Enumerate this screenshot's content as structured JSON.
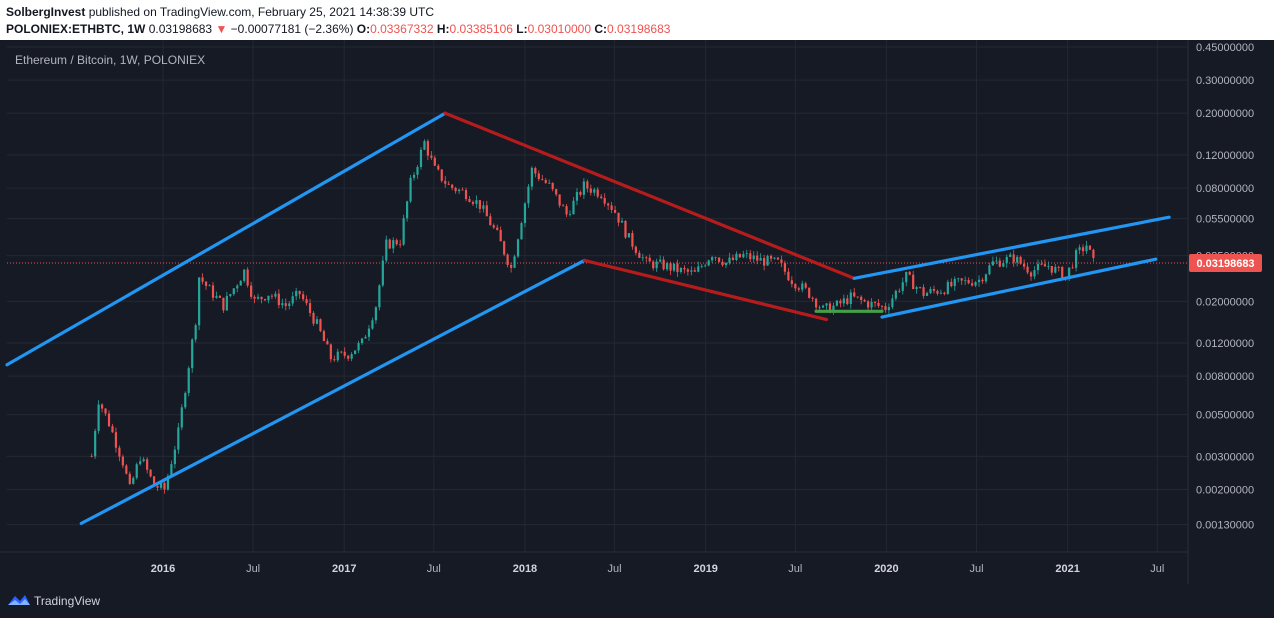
{
  "header": {
    "author": "SolbergInvest",
    "published": "published on TradingView.com, February 25, 2021 14:38:39 UTC",
    "symbol_interval": "POLONIEX:ETHBTC, 1W",
    "last": "0.03198683",
    "change": "−0.00077181 (−2.36%)",
    "open_label": "O:",
    "open": "0.03367332",
    "high_label": "H:",
    "high": "0.03385106",
    "low_label": "L:",
    "low": "0.03010000",
    "close_label": "C:",
    "close": "0.03198683"
  },
  "legend": {
    "title": "Ethereum / Bitcoin, 1W, POLONIEX"
  },
  "colors": {
    "background": "#161a25",
    "grid": "#242833",
    "up": "#26a69a",
    "down": "#ef5350",
    "channel_blue": "#2196f3",
    "wedge_red": "#b71c1c",
    "base_green": "#43a047",
    "axis_text": "#b2b5be"
  },
  "footer": {
    "brand": "TradingView"
  },
  "chart_data": {
    "type": "candlestick",
    "title": "Ethereum / Bitcoin, 1W, POLONIEX",
    "scale": "log",
    "ylim": [
      0.00093,
      0.49
    ],
    "xlim": [
      "2015-02-20",
      "2021-09-01"
    ],
    "grid": true,
    "y_ticks": [
      "0.45000000",
      "0.30000000",
      "0.20000000",
      "0.12000000",
      "0.08000000",
      "0.05500000",
      "0.03500000",
      "0.02000000",
      "0.01200000",
      "0.00800000",
      "0.00500000",
      "0.00300000",
      "0.00200000",
      "0.00130000"
    ],
    "x_ticks": [
      {
        "date": "2016-01-01",
        "label": "2016"
      },
      {
        "date": "2016-07-01",
        "label": "Jul"
      },
      {
        "date": "2017-01-01",
        "label": "2017"
      },
      {
        "date": "2017-07-01",
        "label": "Jul"
      },
      {
        "date": "2018-01-01",
        "label": "2018"
      },
      {
        "date": "2018-07-01",
        "label": "Jul"
      },
      {
        "date": "2019-01-01",
        "label": "2019"
      },
      {
        "date": "2019-07-01",
        "label": "Jul"
      },
      {
        "date": "2020-01-01",
        "label": "2020"
      },
      {
        "date": "2020-07-01",
        "label": "Jul"
      },
      {
        "date": "2021-01-01",
        "label": "2021"
      },
      {
        "date": "2021-07-01",
        "label": "Jul"
      }
    ],
    "last_price": {
      "value": 0.03198683,
      "label": "0.03198683"
    },
    "series": [
      {
        "date": "2015-08-10",
        "close": 0.003
      },
      {
        "date": "2015-08-24",
        "close": 0.006
      },
      {
        "date": "2015-09-14",
        "close": 0.0045
      },
      {
        "date": "2015-10-12",
        "close": 0.0028
      },
      {
        "date": "2015-10-26",
        "close": 0.002
      },
      {
        "date": "2015-11-16",
        "close": 0.003
      },
      {
        "date": "2015-12-14",
        "close": 0.0021
      },
      {
        "date": "2016-01-04",
        "close": 0.002
      },
      {
        "date": "2016-02-01",
        "close": 0.004
      },
      {
        "date": "2016-03-07",
        "close": 0.016
      },
      {
        "date": "2016-03-14",
        "close": 0.027
      },
      {
        "date": "2016-04-04",
        "close": 0.023
      },
      {
        "date": "2016-05-02",
        "close": 0.019
      },
      {
        "date": "2016-06-13",
        "close": 0.029
      },
      {
        "date": "2016-07-04",
        "close": 0.02
      },
      {
        "date": "2016-08-01",
        "close": 0.022
      },
      {
        "date": "2016-09-05",
        "close": 0.019
      },
      {
        "date": "2016-10-03",
        "close": 0.022
      },
      {
        "date": "2016-11-07",
        "close": 0.015
      },
      {
        "date": "2016-12-05",
        "close": 0.01
      },
      {
        "date": "2017-01-09",
        "close": 0.0105
      },
      {
        "date": "2017-02-06",
        "close": 0.012
      },
      {
        "date": "2017-03-06",
        "close": 0.019
      },
      {
        "date": "2017-03-27",
        "close": 0.04
      },
      {
        "date": "2017-04-24",
        "close": 0.042
      },
      {
        "date": "2017-05-15",
        "close": 0.085
      },
      {
        "date": "2017-06-12",
        "close": 0.14
      },
      {
        "date": "2017-07-03",
        "close": 0.1
      },
      {
        "date": "2017-07-31",
        "close": 0.082
      },
      {
        "date": "2017-09-04",
        "close": 0.075
      },
      {
        "date": "2017-10-02",
        "close": 0.065
      },
      {
        "date": "2017-11-06",
        "close": 0.045
      },
      {
        "date": "2017-12-04",
        "close": 0.03
      },
      {
        "date": "2017-12-25",
        "close": 0.055
      },
      {
        "date": "2018-01-15",
        "close": 0.1
      },
      {
        "date": "2018-02-19",
        "close": 0.082
      },
      {
        "date": "2018-03-26",
        "close": 0.058
      },
      {
        "date": "2018-04-30",
        "close": 0.082
      },
      {
        "date": "2018-06-04",
        "close": 0.075
      },
      {
        "date": "2018-07-02",
        "close": 0.06
      },
      {
        "date": "2018-07-30",
        "close": 0.043
      },
      {
        "date": "2018-09-03",
        "close": 0.032
      },
      {
        "date": "2018-10-08",
        "close": 0.031
      },
      {
        "date": "2018-11-12",
        "close": 0.029
      },
      {
        "date": "2018-12-10",
        "close": 0.028
      },
      {
        "date": "2019-01-14",
        "close": 0.036
      },
      {
        "date": "2019-02-11",
        "close": 0.032
      },
      {
        "date": "2019-03-18",
        "close": 0.035
      },
      {
        "date": "2019-04-22",
        "close": 0.033
      },
      {
        "date": "2019-05-27",
        "close": 0.032
      },
      {
        "date": "2019-06-24",
        "close": 0.026
      },
      {
        "date": "2019-07-29",
        "close": 0.022
      },
      {
        "date": "2019-08-26",
        "close": 0.018
      },
      {
        "date": "2019-09-23",
        "close": 0.019
      },
      {
        "date": "2019-10-21",
        "close": 0.021
      },
      {
        "date": "2019-11-25",
        "close": 0.0195
      },
      {
        "date": "2019-12-30",
        "close": 0.0185
      },
      {
        "date": "2020-02-10",
        "close": 0.027
      },
      {
        "date": "2020-03-16",
        "close": 0.022
      },
      {
        "date": "2020-04-20",
        "close": 0.023
      },
      {
        "date": "2020-05-25",
        "close": 0.025
      },
      {
        "date": "2020-07-06",
        "close": 0.026
      },
      {
        "date": "2020-08-03",
        "close": 0.032
      },
      {
        "date": "2020-09-14",
        "close": 0.034
      },
      {
        "date": "2020-10-19",
        "close": 0.029
      },
      {
        "date": "2020-11-23",
        "close": 0.031
      },
      {
        "date": "2020-12-28",
        "close": 0.027
      },
      {
        "date": "2021-01-18",
        "close": 0.035
      },
      {
        "date": "2021-02-08",
        "close": 0.04
      },
      {
        "date": "2021-02-22",
        "close": 0.032
      }
    ],
    "drawings": [
      {
        "name": "upper-channel-line-2015",
        "color": "blue",
        "points": [
          [
            "2015-02-20",
            0.0092
          ],
          [
            "2017-07-24",
            0.2
          ]
        ]
      },
      {
        "name": "lower-channel-line-2015",
        "color": "blue",
        "points": [
          [
            "2015-07-20",
            0.00132
          ],
          [
            "2018-05-01",
            0.033
          ]
        ]
      },
      {
        "name": "wedge-upper-line",
        "color": "red",
        "points": [
          [
            "2017-07-24",
            0.2
          ],
          [
            "2019-10-28",
            0.0265
          ]
        ]
      },
      {
        "name": "wedge-lower-line",
        "color": "red",
        "points": [
          [
            "2018-05-01",
            0.033
          ],
          [
            "2019-09-02",
            0.016
          ]
        ]
      },
      {
        "name": "base-support-line",
        "color": "green",
        "points": [
          [
            "2019-08-12",
            0.0177
          ],
          [
            "2019-12-23",
            0.0177
          ]
        ]
      },
      {
        "name": "upper-channel-line-2019",
        "color": "blue",
        "points": [
          [
            "2019-10-28",
            0.0265
          ],
          [
            "2021-07-25",
            0.056
          ]
        ]
      },
      {
        "name": "lower-channel-line-2019",
        "color": "blue",
        "points": [
          [
            "2019-12-23",
            0.0165
          ],
          [
            "2021-06-28",
            0.0335
          ]
        ]
      }
    ]
  }
}
